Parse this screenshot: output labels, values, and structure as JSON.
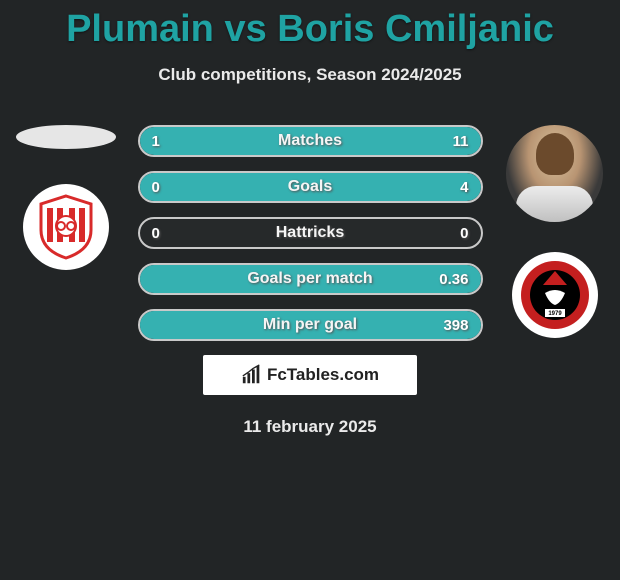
{
  "title": "Plumain vs Boris Cmiljanic",
  "subtitle": "Club competitions, Season 2024/2025",
  "date": "11 february 2025",
  "brand": {
    "label": "FcTables.com"
  },
  "colors": {
    "background": "#222526",
    "title": "#1fa3a3",
    "bar_fill": "#35b1b1",
    "bar_border": "#c9c9c9",
    "text": "#eaeaea"
  },
  "player_left": {
    "name": "Plumain",
    "has_photo": false,
    "club_badge": {
      "shape": "shield",
      "primary_color": "#d82a2a",
      "secondary_color": "#ffffff",
      "stripes": true
    }
  },
  "player_right": {
    "name": "Boris Cmiljanic",
    "has_photo": true,
    "club_badge": {
      "shape": "circle",
      "primary_color": "#c41f1f",
      "secondary_color": "#000000",
      "accent": "#ffffff",
      "year": "1979"
    }
  },
  "stats": [
    {
      "label": "Matches",
      "left_value": "1",
      "right_value": "11",
      "left_pct": 8,
      "right_pct": 92
    },
    {
      "label": "Goals",
      "left_value": "0",
      "right_value": "4",
      "left_pct": 0,
      "right_pct": 100
    },
    {
      "label": "Hattricks",
      "left_value": "0",
      "right_value": "0",
      "left_pct": 0,
      "right_pct": 0
    },
    {
      "label": "Goals per match",
      "left_value": "",
      "right_value": "0.36",
      "left_pct": 0,
      "right_pct": 100
    },
    {
      "label": "Min per goal",
      "left_value": "",
      "right_value": "398",
      "left_pct": 0,
      "right_pct": 100
    }
  ]
}
